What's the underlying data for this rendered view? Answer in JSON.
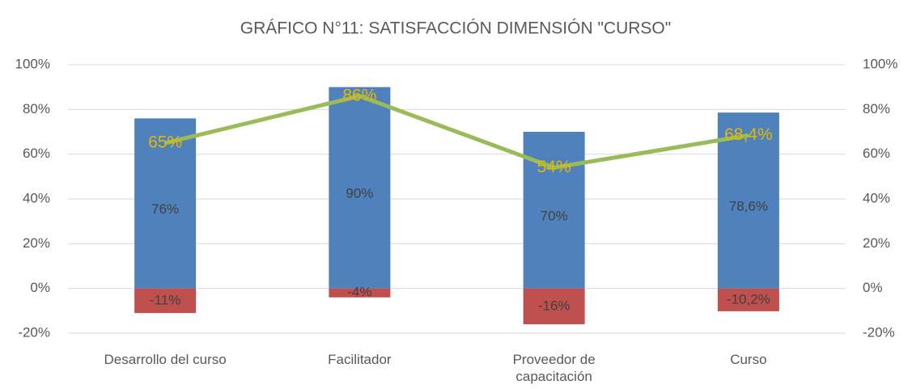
{
  "chart_data": {
    "type": "bar_line",
    "title": "GRÁFICO N°11: SATISFACCIÓN DIMENSIÓN \"CURSO\"",
    "categories": [
      "Desarrollo del curso",
      "Facilitador",
      "Proveedor de capacitación",
      "Curso"
    ],
    "series": [
      {
        "color": "#4f81bd",
        "type": "bar",
        "values": [
          76,
          90,
          70,
          78.6
        ],
        "value_labels": [
          "76%",
          "90%",
          "70%",
          "78,6%"
        ]
      },
      {
        "color": "#c0504d",
        "type": "bar",
        "values": [
          -11,
          -4,
          -16,
          -10.2
        ],
        "value_labels": [
          "-11%",
          "-4%",
          "-16%",
          "-10,2%"
        ]
      },
      {
        "color": "#9bbb59",
        "type": "line",
        "axis": "y2",
        "label_color": "#e6b800",
        "values": [
          65,
          86,
          54,
          68.4
        ],
        "value_labels": [
          "65%",
          "86%",
          "54%",
          "68,4%"
        ]
      }
    ],
    "ylim": [
      -20,
      100
    ],
    "yticks": [
      {
        "value": -20,
        "label": "-20%"
      },
      {
        "value": 0,
        "label": "0%"
      },
      {
        "value": 20,
        "label": "20%"
      },
      {
        "value": 40,
        "label": "40%"
      },
      {
        "value": 60,
        "label": "60%"
      },
      {
        "value": 80,
        "label": "80%"
      },
      {
        "value": 100,
        "label": "100%"
      }
    ],
    "y2lim": [
      -20,
      100
    ],
    "y2ticks": [
      {
        "value": -20,
        "label": "-20%"
      },
      {
        "value": 0,
        "label": "0%"
      },
      {
        "value": 20,
        "label": "20%"
      },
      {
        "value": 40,
        "label": "40%"
      },
      {
        "value": 60,
        "label": "60%"
      },
      {
        "value": 80,
        "label": "80%"
      },
      {
        "value": 100,
        "label": "100%"
      }
    ],
    "grid": true
  }
}
